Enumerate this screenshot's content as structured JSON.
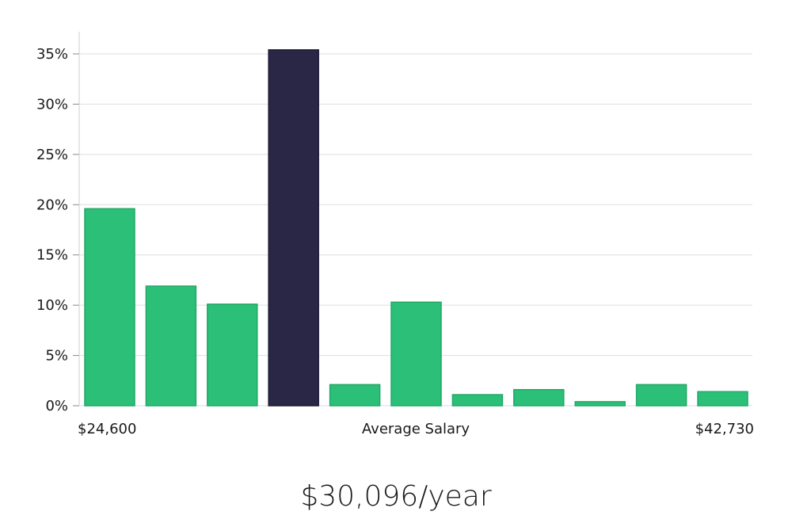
{
  "chart_data": {
    "type": "bar",
    "title": "",
    "xlabel": "Average Salary",
    "ylabel": "",
    "x_range_labels": {
      "min": "$24,600",
      "max": "$42,730"
    },
    "y_ticks": [
      "0%",
      "5%",
      "10%",
      "15%",
      "20%",
      "25%",
      "30%",
      "35%"
    ],
    "ylim": [
      0,
      37
    ],
    "values": [
      19.6,
      11.9,
      10.1,
      35.4,
      2.1,
      10.3,
      1.1,
      1.6,
      0.4,
      2.1,
      1.4
    ],
    "highlight_index": 3,
    "colors": {
      "bar": "#2bbf78",
      "bar_border": "#22a866",
      "highlight": "#2a2746",
      "grid": "#dddddd",
      "axis": "#cfcfcf"
    }
  },
  "summary": {
    "salary": "$30,096/year"
  }
}
